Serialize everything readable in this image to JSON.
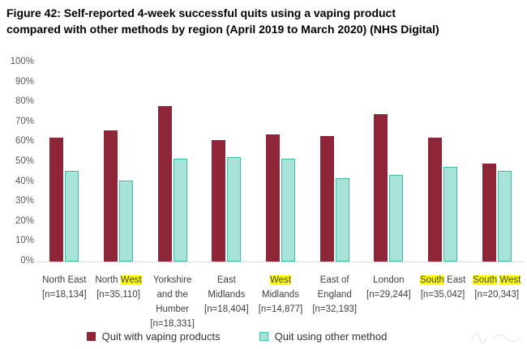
{
  "title_lines": [
    "Figure 42: Self-reported 4-week successful quits using a vaping product",
    "compared with other methods by region (April 2019 to March 2020) (NHS Digital)"
  ],
  "chart_data": {
    "type": "bar",
    "title": "Figure 42: Self-reported 4-week successful quits using a vaping product compared with other methods by region (April 2019 to March 2020) (NHS Digital)",
    "categories": [
      "North East",
      "North West",
      "Yorkshire and the Humber",
      "East Midlands",
      "West Midlands",
      "East of England",
      "London",
      "South East",
      "South West"
    ],
    "sample_sizes": [
      "[n=18,134]",
      "[n=35,110]",
      "[n=18,331]",
      "[n=18,404]",
      "[n=14,877]",
      "[n=32,193]",
      "[n=29,244]",
      "[n=35,042]",
      "[n=20,343]"
    ],
    "series": [
      {
        "name": "Quit with vaping products",
        "color": "#8F2638",
        "values": [
          62,
          66,
          78,
          61,
          64,
          63,
          74,
          62,
          49
        ]
      },
      {
        "name": "Quit using other method",
        "color": "#A8E3D8",
        "border_color": "#3FBCA8",
        "values": [
          45.5,
          40.5,
          51.5,
          52.5,
          51.5,
          42,
          43.5,
          47.5,
          45.5
        ]
      }
    ],
    "ylim": [
      0,
      100
    ],
    "yticks_top_to_bottom": [
      "100%",
      "90%",
      "80%",
      "70%",
      "60%",
      "50%",
      "40%",
      "30%",
      "20%",
      "10%",
      "0%"
    ],
    "grid": false,
    "legend_position": "bottom",
    "highlight_color": "#FFFF00",
    "axis_text_color": "#595959",
    "baseline_color": "#D9D9D9"
  },
  "xlabels": [
    {
      "lines": [
        [
          {
            "t": "North East"
          }
        ],
        [
          {
            "t": "[n=18,134]"
          }
        ]
      ]
    },
    {
      "lines": [
        [
          {
            "t": "North "
          },
          {
            "t": "West",
            "hl": true
          }
        ],
        [
          {
            "t": "[n=35,110]"
          }
        ]
      ]
    },
    {
      "lines": [
        [
          {
            "t": "Yorkshire"
          }
        ],
        [
          {
            "t": "and the"
          }
        ],
        [
          {
            "t": "Humber"
          }
        ],
        [
          {
            "t": "[n=18,331]"
          }
        ]
      ]
    },
    {
      "lines": [
        [
          {
            "t": "East"
          }
        ],
        [
          {
            "t": "Midlands"
          }
        ],
        [
          {
            "t": "[n=18,404]"
          }
        ]
      ]
    },
    {
      "lines": [
        [
          {
            "t": "West",
            "hl": true
          }
        ],
        [
          {
            "t": "Midlands"
          }
        ],
        [
          {
            "t": "[n=14,877]"
          }
        ]
      ]
    },
    {
      "lines": [
        [
          {
            "t": "East of"
          }
        ],
        [
          {
            "t": "England"
          }
        ],
        [
          {
            "t": "[n=32,193]"
          }
        ]
      ]
    },
    {
      "lines": [
        [
          {
            "t": "London"
          }
        ],
        [
          {
            "t": "[n=29,244]"
          }
        ]
      ]
    },
    {
      "lines": [
        [
          {
            "t": "South",
            "hl": true
          },
          {
            "t": " East"
          }
        ],
        [
          {
            "t": "[n=35,042]"
          }
        ]
      ]
    },
    {
      "lines": [
        [
          {
            "t": "South",
            "hl": true
          },
          {
            "t": " "
          },
          {
            "t": "West",
            "hl": true
          }
        ],
        [
          {
            "t": "[n=20,343]"
          }
        ]
      ]
    }
  ]
}
